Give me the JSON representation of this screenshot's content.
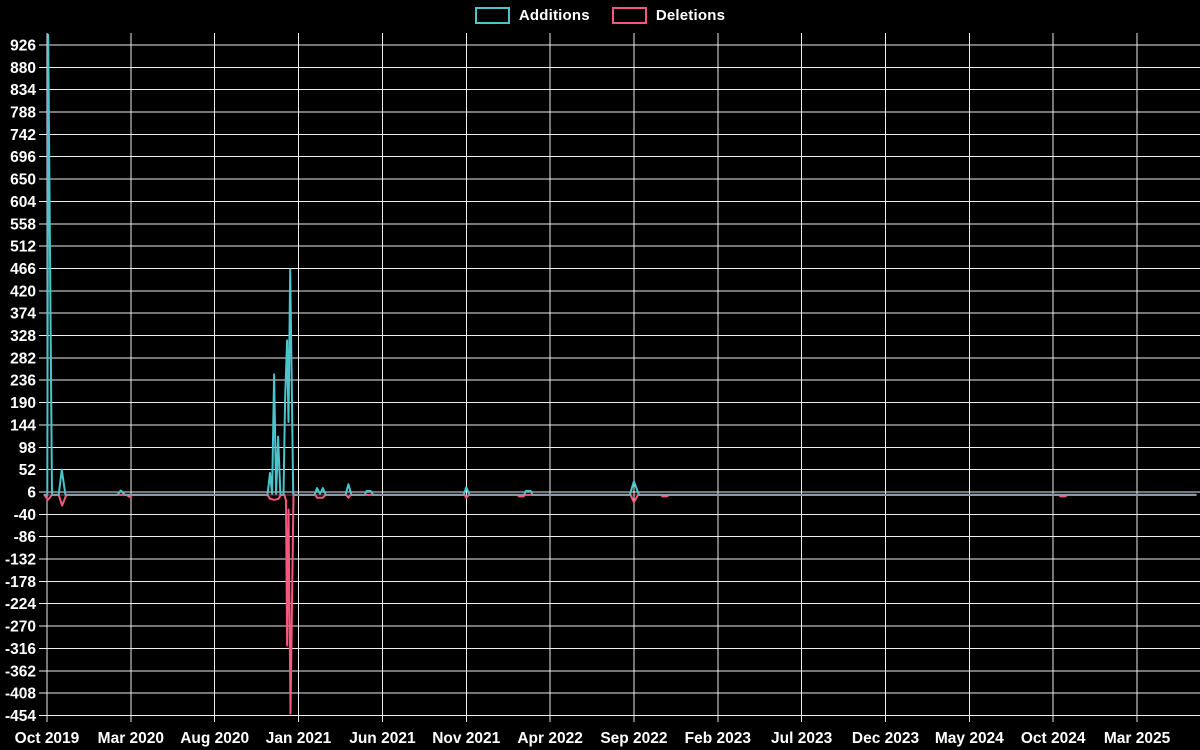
{
  "legend": {
    "additions_label": "Additions",
    "deletions_label": "Deletions"
  },
  "chart_data": {
    "type": "line",
    "title": "",
    "legend_position": "top-center",
    "grid": true,
    "background_color": "#000000",
    "gridline_color": "#ededed",
    "text_color": "#ffffff",
    "x_unit": "months since Oct 2019 (ticks every 5 months)",
    "x_ticks": [
      "Oct 2019",
      "Mar 2020",
      "Aug 2020",
      "Jan 2021",
      "Jun 2021",
      "Nov 2021",
      "Apr 2022",
      "Sep 2022",
      "Feb 2023",
      "Jul 2023",
      "Dec 2023",
      "May 2024",
      "Oct 2024",
      "Mar 2025"
    ],
    "x_tick_month_positions": [
      0,
      5,
      10,
      15,
      20,
      25,
      30,
      35,
      40,
      45,
      50,
      55,
      60,
      65
    ],
    "x_domain_months": [
      -0.15,
      68.5
    ],
    "y_ticks": [
      926,
      880,
      834,
      788,
      742,
      696,
      650,
      604,
      558,
      512,
      466,
      420,
      374,
      328,
      282,
      236,
      190,
      144,
      98,
      52,
      6,
      -40,
      -86,
      -132,
      -178,
      -224,
      -270,
      -316,
      -362,
      -408,
      -454
    ],
    "y_domain": [
      -454,
      926
    ],
    "series": [
      {
        "name": "Additions",
        "color": "#4cc5ca",
        "points": [
          [
            -0.15,
            0
          ],
          [
            0.02,
            0
          ],
          [
            0.07,
            947
          ],
          [
            0.3,
            0
          ],
          [
            0.7,
            0
          ],
          [
            0.88,
            52
          ],
          [
            1.1,
            0
          ],
          [
            4.2,
            0
          ],
          [
            4.4,
            9
          ],
          [
            4.65,
            0
          ],
          [
            13.15,
            0
          ],
          [
            13.3,
            45
          ],
          [
            13.42,
            2
          ],
          [
            13.54,
            248
          ],
          [
            13.66,
            2
          ],
          [
            13.78,
            120
          ],
          [
            13.92,
            0
          ],
          [
            14.1,
            0
          ],
          [
            14.2,
            196
          ],
          [
            14.32,
            318
          ],
          [
            14.4,
            150
          ],
          [
            14.5,
            464
          ],
          [
            14.68,
            2
          ],
          [
            14.8,
            0
          ],
          [
            15.95,
            0
          ],
          [
            16.1,
            14
          ],
          [
            16.28,
            2
          ],
          [
            16.45,
            14
          ],
          [
            16.62,
            0
          ],
          [
            17.8,
            0
          ],
          [
            17.97,
            22
          ],
          [
            18.15,
            0
          ],
          [
            18.95,
            0
          ],
          [
            19.05,
            8
          ],
          [
            19.3,
            8
          ],
          [
            19.45,
            0
          ],
          [
            24.85,
            0
          ],
          [
            25.0,
            16
          ],
          [
            25.2,
            0
          ],
          [
            28.45,
            0
          ],
          [
            28.55,
            8
          ],
          [
            28.85,
            8
          ],
          [
            28.95,
            0
          ],
          [
            34.75,
            0
          ],
          [
            35.0,
            28
          ],
          [
            35.3,
            0
          ],
          [
            68.5,
            0
          ]
        ]
      },
      {
        "name": "Deletions",
        "color": "#f4587e",
        "points": [
          [
            -0.15,
            0
          ],
          [
            0.05,
            -10
          ],
          [
            0.3,
            0
          ],
          [
            0.7,
            0
          ],
          [
            0.9,
            -22
          ],
          [
            1.15,
            0
          ],
          [
            4.75,
            0
          ],
          [
            4.9,
            -4
          ],
          [
            5.1,
            0
          ],
          [
            13.15,
            0
          ],
          [
            13.3,
            -8
          ],
          [
            13.55,
            -10
          ],
          [
            13.8,
            -8
          ],
          [
            13.95,
            0
          ],
          [
            14.15,
            0
          ],
          [
            14.25,
            -12
          ],
          [
            14.32,
            -310
          ],
          [
            14.4,
            -30
          ],
          [
            14.52,
            -450
          ],
          [
            14.7,
            0
          ],
          [
            16.0,
            0
          ],
          [
            16.1,
            -6
          ],
          [
            16.45,
            -6
          ],
          [
            16.6,
            0
          ],
          [
            17.85,
            0
          ],
          [
            17.97,
            -6
          ],
          [
            18.1,
            0
          ],
          [
            24.9,
            0
          ],
          [
            25.0,
            -6
          ],
          [
            25.15,
            0
          ],
          [
            28.05,
            0
          ],
          [
            28.15,
            -3
          ],
          [
            28.4,
            -3
          ],
          [
            28.5,
            0
          ],
          [
            34.8,
            0
          ],
          [
            35.0,
            -15
          ],
          [
            35.25,
            0
          ],
          [
            36.6,
            0
          ],
          [
            36.7,
            -3
          ],
          [
            36.95,
            -3
          ],
          [
            37.1,
            0
          ],
          [
            60.35,
            0
          ],
          [
            60.45,
            -3
          ],
          [
            60.7,
            -3
          ],
          [
            60.85,
            0
          ],
          [
            68.5,
            0
          ]
        ]
      }
    ]
  }
}
